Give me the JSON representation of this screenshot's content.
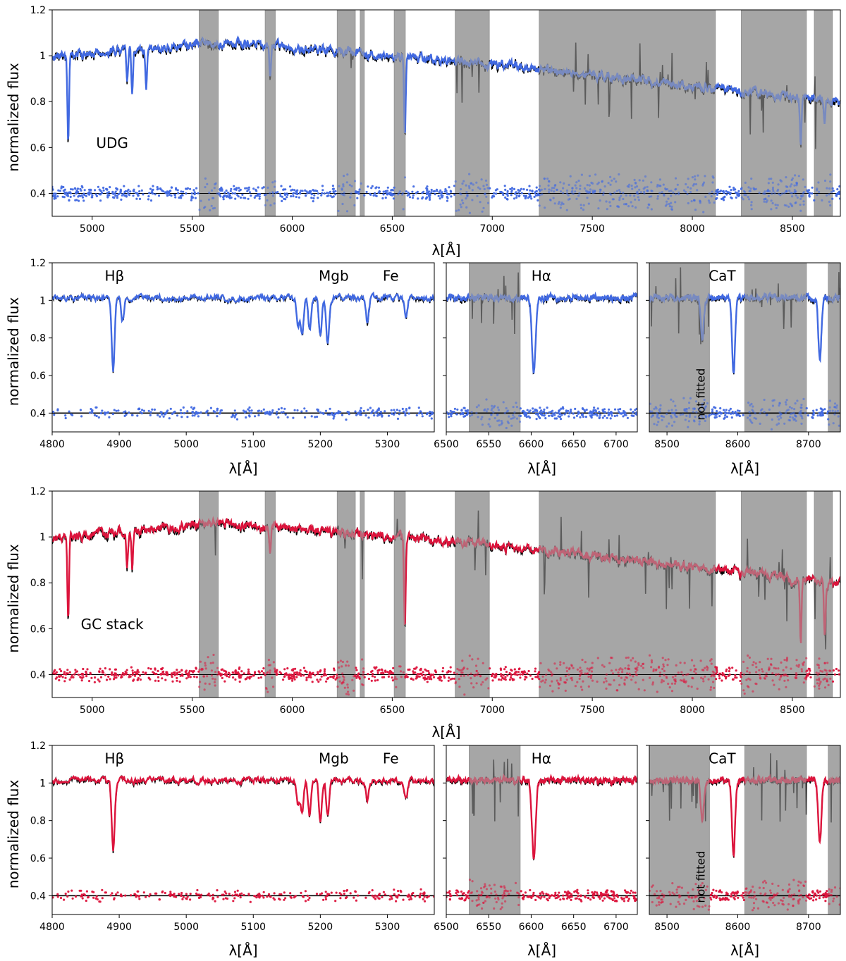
{
  "chart_data": [
    {
      "id": "udg_full",
      "type": "line",
      "ylabel": "normalized flux",
      "xlabel": "λ[Å]",
      "xlim": [
        4800,
        8740
      ],
      "ylim": [
        0.3,
        1.2
      ],
      "xticks": [
        5000,
        5500,
        6000,
        6500,
        7000,
        7500,
        8000,
        8500
      ],
      "yticks": [
        0.4,
        0.6,
        0.8,
        1.0,
        1.2
      ],
      "annotations": [
        {
          "text": "UDG",
          "x": 5100,
          "y": 0.62
        }
      ],
      "masked_regions": [
        [
          5535,
          5630
        ],
        [
          5865,
          5915
        ],
        [
          6225,
          6315
        ],
        [
          6340,
          6360
        ],
        [
          6510,
          6565
        ],
        [
          6815,
          6985
        ],
        [
          7235,
          8115
        ],
        [
          8245,
          8570
        ],
        [
          8610,
          8700
        ]
      ],
      "lines": [
        [
          4880,
          0.62
        ],
        [
          5175,
          0.86
        ],
        [
          5200,
          0.82
        ],
        [
          5270,
          0.85
        ],
        [
          5890,
          0.92
        ],
        [
          6563,
          0.62
        ],
        [
          8498,
          0.8
        ],
        [
          8542,
          0.6
        ],
        [
          8662,
          0.7
        ]
      ],
      "model_color": "#4169e1",
      "residual_color": "#4169e1",
      "residual_level": 0.4
    },
    {
      "id": "udg_zoom_hbeta",
      "type": "line",
      "ylabel": "normalized flux",
      "xlabel": "λ[Å]",
      "xlim": [
        4800,
        5370
      ],
      "ylim": [
        0.3,
        1.2
      ],
      "xticks": [
        4800,
        4900,
        5000,
        5100,
        5200,
        5300
      ],
      "yticks": [
        0.4,
        0.6,
        0.8,
        1.0,
        1.2
      ],
      "annotations": [
        {
          "text": "Hβ",
          "x": 4893,
          "y": 1.13
        },
        {
          "text": "Mgb",
          "x": 5220,
          "y": 1.13
        },
        {
          "text": "Fe",
          "x": 5305,
          "y": 1.13
        }
      ],
      "masked_regions": [],
      "lines": [
        [
          4891,
          0.62
        ],
        [
          4905,
          0.89
        ],
        [
          5167,
          0.86
        ],
        [
          5173,
          0.82
        ],
        [
          5184,
          0.84
        ],
        [
          5200,
          0.8
        ],
        [
          5211,
          0.78
        ],
        [
          5270,
          0.88
        ],
        [
          5328,
          0.89
        ]
      ],
      "model_color": "#4169e1",
      "residual_color": "#4169e1",
      "residual_level": 0.4
    },
    {
      "id": "udg_zoom_halpha",
      "type": "line",
      "xlabel": "λ[Å]",
      "xlim": [
        6500,
        6725
      ],
      "ylim": [
        0.3,
        1.2
      ],
      "xticks": [
        6500,
        6550,
        6600,
        6650,
        6700
      ],
      "annotations": [
        {
          "text": "Hα",
          "x": 6612,
          "y": 1.13
        }
      ],
      "masked_regions": [
        [
          6527,
          6587
        ]
      ],
      "lines": [
        [
          6603,
          0.62
        ]
      ],
      "model_color": "#4169e1",
      "residual_color": "#4169e1",
      "residual_level": 0.4
    },
    {
      "id": "udg_zoom_cat",
      "type": "line",
      "xlabel": "λ[Å]",
      "xlim": [
        8475,
        8745
      ],
      "ylim": [
        0.3,
        1.2
      ],
      "xticks": [
        8500,
        8600,
        8700
      ],
      "annotations": [
        {
          "text": "CaT",
          "x": 8578,
          "y": 1.13
        },
        {
          "text": "not fitted",
          "x": 8553,
          "y": 0.5
        }
      ],
      "masked_regions": [
        [
          8475,
          8560
        ],
        [
          8610,
          8697
        ],
        [
          8728,
          8745
        ]
      ],
      "lines": [
        [
          8550,
          0.8
        ],
        [
          8594,
          0.6
        ],
        [
          8716,
          0.68
        ]
      ],
      "model_color": "#4169e1",
      "residual_color": "#4169e1",
      "residual_level": 0.4
    },
    {
      "id": "gc_full",
      "type": "line",
      "ylabel": "normalized flux",
      "xlabel": "λ[Å]",
      "xlim": [
        4800,
        8740
      ],
      "ylim": [
        0.3,
        1.2
      ],
      "xticks": [
        5000,
        5500,
        6000,
        6500,
        7000,
        7500,
        8000,
        8500
      ],
      "yticks": [
        0.4,
        0.6,
        0.8,
        1.0,
        1.2
      ],
      "annotations": [
        {
          "text": "GC stack",
          "x": 5100,
          "y": 0.62
        }
      ],
      "masked_regions": [
        [
          5535,
          5630
        ],
        [
          5865,
          5915
        ],
        [
          6225,
          6315
        ],
        [
          6340,
          6360
        ],
        [
          6510,
          6565
        ],
        [
          6815,
          6985
        ],
        [
          7235,
          8115
        ],
        [
          8245,
          8570
        ],
        [
          8610,
          8700
        ]
      ],
      "lines": [
        [
          4880,
          0.63
        ],
        [
          5175,
          0.86
        ],
        [
          5200,
          0.86
        ],
        [
          5890,
          0.93
        ],
        [
          6563,
          0.58
        ],
        [
          8498,
          0.78
        ],
        [
          8542,
          0.52
        ],
        [
          8662,
          0.55
        ]
      ],
      "model_color": "#dc143c",
      "residual_color": "#dc143c",
      "residual_level": 0.4
    },
    {
      "id": "gc_zoom_hbeta",
      "type": "line",
      "ylabel": "normalized flux",
      "xlabel": "λ[Å]",
      "xlim": [
        4800,
        5370
      ],
      "ylim": [
        0.3,
        1.2
      ],
      "xticks": [
        4800,
        4900,
        5000,
        5100,
        5200,
        5300
      ],
      "yticks": [
        0.4,
        0.6,
        0.8,
        1.0,
        1.2
      ],
      "annotations": [
        {
          "text": "Hβ",
          "x": 4893,
          "y": 1.13
        },
        {
          "text": "Mgb",
          "x": 5220,
          "y": 1.13
        },
        {
          "text": "Fe",
          "x": 5305,
          "y": 1.13
        }
      ],
      "masked_regions": [],
      "lines": [
        [
          4891,
          0.63
        ],
        [
          5167,
          0.88
        ],
        [
          5173,
          0.84
        ],
        [
          5184,
          0.82
        ],
        [
          5200,
          0.8
        ],
        [
          5211,
          0.83
        ],
        [
          5270,
          0.9
        ],
        [
          5328,
          0.91
        ]
      ],
      "model_color": "#dc143c",
      "residual_color": "#dc143c",
      "residual_level": 0.4
    },
    {
      "id": "gc_zoom_halpha",
      "type": "line",
      "xlabel": "λ[Å]",
      "xlim": [
        6500,
        6725
      ],
      "ylim": [
        0.3,
        1.2
      ],
      "xticks": [
        6500,
        6550,
        6600,
        6650,
        6700
      ],
      "annotations": [
        {
          "text": "Hα",
          "x": 6612,
          "y": 1.13
        }
      ],
      "masked_regions": [
        [
          6527,
          6587
        ]
      ],
      "lines": [
        [
          6603,
          0.6
        ]
      ],
      "model_color": "#dc143c",
      "residual_color": "#dc143c",
      "residual_level": 0.4
    },
    {
      "id": "gc_zoom_cat",
      "type": "line",
      "xlabel": "λ[Å]",
      "xlim": [
        8475,
        8745
      ],
      "ylim": [
        0.3,
        1.2
      ],
      "xticks": [
        8500,
        8600,
        8700
      ],
      "annotations": [
        {
          "text": "CaT",
          "x": 8578,
          "y": 1.13
        },
        {
          "text": "not fitted",
          "x": 8553,
          "y": 0.5
        }
      ],
      "masked_regions": [
        [
          8475,
          8560
        ],
        [
          8610,
          8697
        ],
        [
          8728,
          8745
        ]
      ],
      "lines": [
        [
          8550,
          0.8
        ],
        [
          8594,
          0.61
        ],
        [
          8716,
          0.67
        ]
      ],
      "model_color": "#dc143c",
      "residual_color": "#dc143c",
      "residual_level": 0.4
    }
  ]
}
